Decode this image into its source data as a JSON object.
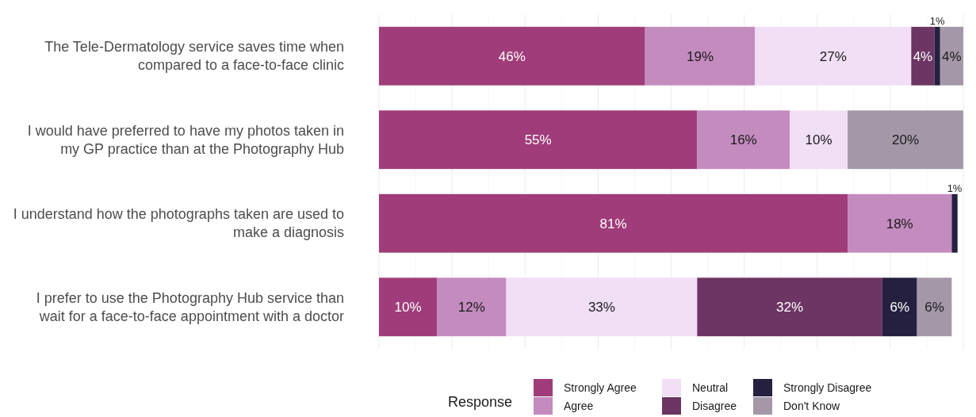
{
  "chart_data": {
    "type": "bar",
    "orientation": "horizontal",
    "stacked": true,
    "legend": "bottom",
    "legend_title": "Response",
    "grid": "x",
    "tick_labels": "y",
    "categories": [
      "The Tele-Dermatology service saves time when compared to a face-to-face clinic",
      "I would have preferred to have my photos taken in my GP practice than at the Photography Hub",
      "I understand how the photographs taken are used to make a diagnosis",
      "I prefer to use the Photography Hub service than wait for a face-to-face appointment with a doctor"
    ],
    "series": [
      {
        "name": "Strongly Agree",
        "color": "#a03c7a",
        "values": [
          46,
          55,
          81,
          10
        ],
        "value_labels": [
          "46%",
          "55%",
          "81%",
          "10%"
        ]
      },
      {
        "name": "Agree",
        "color": "#c48bbf",
        "values": [
          19,
          16,
          18,
          12
        ],
        "value_labels": [
          "19%",
          "16%",
          "18%",
          "12%"
        ]
      },
      {
        "name": "Neutral",
        "color": "#f0dff5",
        "values": [
          27,
          10,
          null,
          33
        ],
        "value_labels": [
          "27%",
          "10%",
          null,
          "33%"
        ]
      },
      {
        "name": "Disagree",
        "color": "#6c3563",
        "values": [
          4,
          null,
          null,
          32
        ],
        "value_labels": [
          "4%",
          null,
          null,
          "32%"
        ]
      },
      {
        "name": "Strongly Disagree",
        "color": "#25203f",
        "values": [
          1,
          null,
          1,
          6
        ],
        "value_labels": [
          "1%",
          null,
          "1%",
          "6%"
        ]
      },
      {
        "name": "Don't Know",
        "color": "#a498a8",
        "values": [
          4,
          20,
          null,
          6
        ],
        "value_labels": [
          "4%",
          "20%",
          null,
          "6%"
        ]
      }
    ]
  }
}
